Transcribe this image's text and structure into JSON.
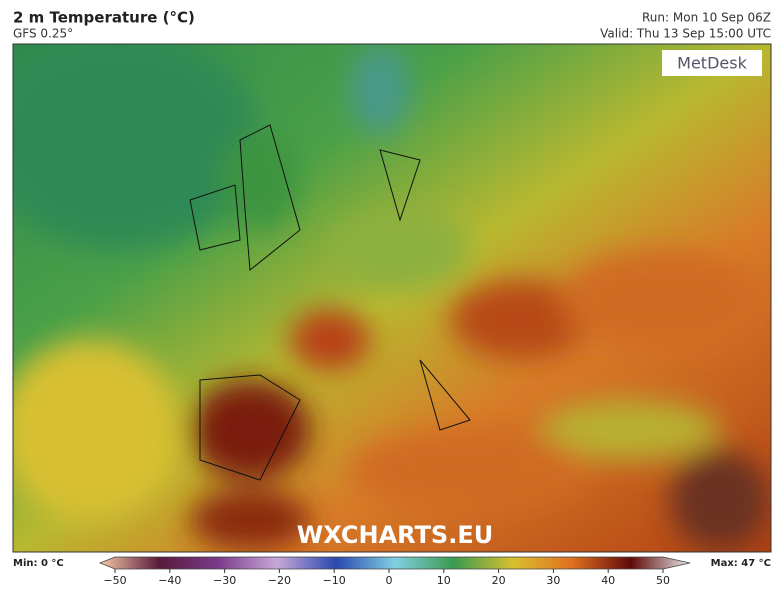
{
  "header": {
    "title": "2 m Temperature (°C)",
    "model": "GFS 0.25°",
    "run": "Run: Mon 10 Sep 06Z",
    "valid": "Valid: Thu 13 Sep 15:00 UTC"
  },
  "map": {
    "logo": "MetDesk",
    "watermark": "WXCHARTS.EU"
  },
  "legend": {
    "min": "Min: 0 °C",
    "max": "Max: 47 °C",
    "range": [
      -50,
      50
    ],
    "ticks": [
      {
        "value": -50,
        "label": "−50"
      },
      {
        "value": -40,
        "label": "−40"
      },
      {
        "value": -30,
        "label": "−30"
      },
      {
        "value": -20,
        "label": "−20"
      },
      {
        "value": -10,
        "label": "−10"
      },
      0,
      10,
      20,
      30,
      40,
      50
    ]
  }
}
